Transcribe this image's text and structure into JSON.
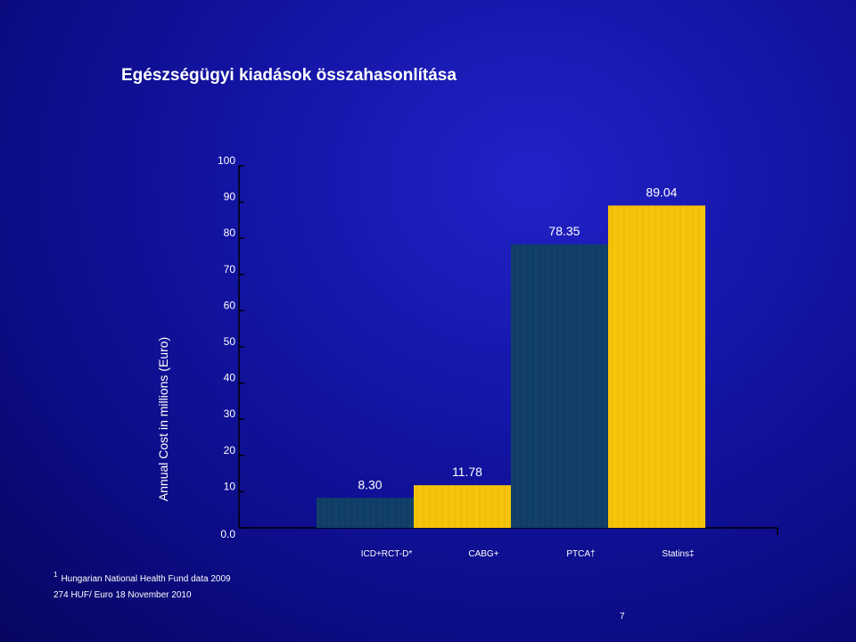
{
  "slide": {
    "title": "Egészségügyi kiadások összahasonlítása",
    "footnote_marker": "1",
    "footnote_1": "Hungarian  National Health Fund data 2009",
    "footnote_2": "274 HUF/ Euro 18 November 2010",
    "page_number": "7"
  },
  "colors": {
    "accent_dark": "#11406a",
    "accent_gold": "#f6c40a",
    "axis": "#000000",
    "text": "#ffffff"
  },
  "chart_data": {
    "type": "bar",
    "categories": [
      "ICD+RCT-D*",
      "CABG+",
      "PTCA†",
      "Statins‡"
    ],
    "values": [
      8.3,
      11.78,
      78.35,
      89.04
    ],
    "value_labels": [
      "8.30",
      "11.78",
      "78.35",
      "89.04"
    ],
    "bar_colors": [
      "#11406a",
      "#f6c40a",
      "#11406a",
      "#f6c40a"
    ],
    "ylabel": "Annual Cost in millions (Euro)",
    "xlabel": "",
    "ylim": [
      0,
      100
    ],
    "yticks": [
      0,
      10,
      20,
      30,
      40,
      50,
      60,
      70,
      80,
      90,
      100
    ],
    "ytick_labels": [
      "0.0",
      "10",
      "20",
      "30",
      "40",
      "50",
      "60",
      "70",
      "80",
      "90",
      "100"
    ],
    "grid": false,
    "legend": "none"
  }
}
